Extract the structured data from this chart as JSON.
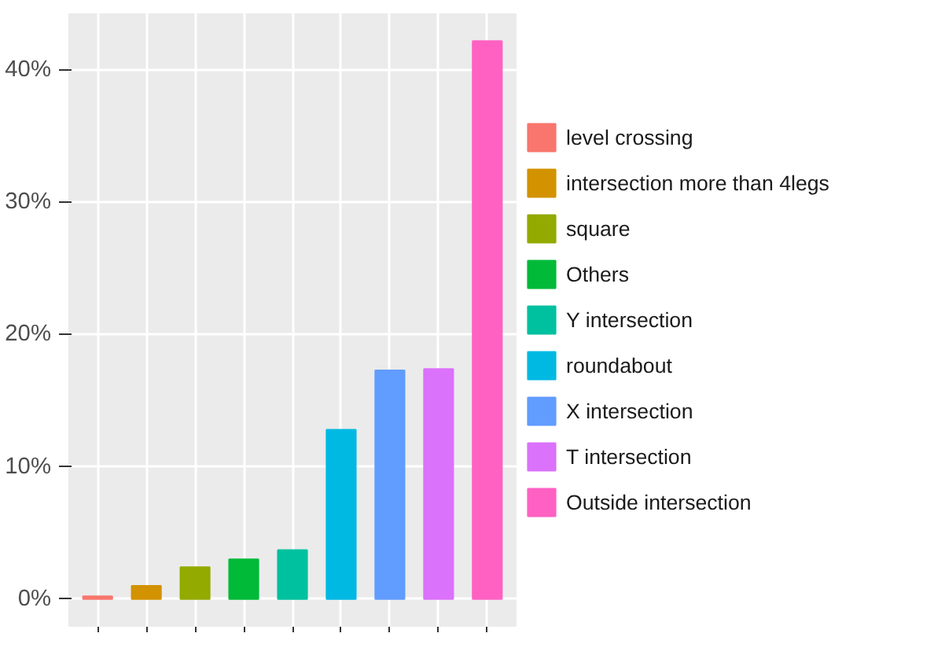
{
  "chart_data": {
    "type": "bar",
    "categories": [
      null,
      null,
      null,
      null,
      null,
      null,
      null,
      null,
      null
    ],
    "series": [
      {
        "name": "level crossing",
        "color": "#f8766d",
        "values": [
          0.2,
          null,
          null,
          null,
          null,
          null,
          null,
          null,
          null
        ]
      },
      {
        "name": "intersection more than 4legs",
        "color": "#d39200",
        "values": [
          null,
          1.0,
          null,
          null,
          null,
          null,
          null,
          null,
          null
        ]
      },
      {
        "name": "square",
        "color": "#93aa00",
        "values": [
          null,
          null,
          2.4,
          null,
          null,
          null,
          null,
          null,
          null
        ]
      },
      {
        "name": "Others",
        "color": "#00ba38",
        "values": [
          null,
          null,
          null,
          3.0,
          null,
          null,
          null,
          null,
          null
        ]
      },
      {
        "name": "Y intersection",
        "color": "#00c19f",
        "values": [
          null,
          null,
          null,
          null,
          3.7,
          null,
          null,
          null,
          null
        ]
      },
      {
        "name": "roundabout",
        "color": "#00b9e3",
        "values": [
          null,
          null,
          null,
          null,
          null,
          12.8,
          null,
          null,
          null
        ]
      },
      {
        "name": "X intersection",
        "color": "#619cff",
        "values": [
          null,
          null,
          null,
          null,
          null,
          null,
          17.3,
          null,
          null
        ]
      },
      {
        "name": "T intersection",
        "color": "#db72fb",
        "values": [
          null,
          null,
          null,
          null,
          null,
          null,
          null,
          17.4,
          null
        ]
      },
      {
        "name": "Outside intersection",
        "color": "#ff61c3",
        "values": [
          null,
          null,
          null,
          null,
          null,
          null,
          null,
          null,
          42.2
        ]
      }
    ],
    "ylim": [
      -2.1,
      44.3
    ],
    "yticks": [
      {
        "value": 0,
        "label": "0%"
      },
      {
        "value": 10,
        "label": "10%"
      },
      {
        "value": 20,
        "label": "20%"
      },
      {
        "value": 30,
        "label": "30%"
      },
      {
        "value": 40,
        "label": "40%"
      }
    ],
    "grid": true,
    "legend": "right",
    "tick_labels": "y"
  }
}
